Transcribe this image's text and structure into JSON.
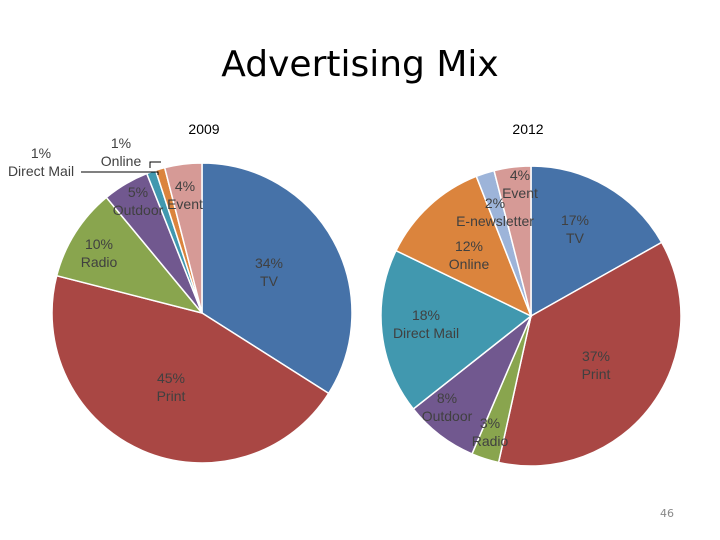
{
  "slide": {
    "title": "Advertising Mix",
    "page_number": "46"
  },
  "chart_data": [
    {
      "type": "pie",
      "title": "2009",
      "slices": [
        {
          "name": "TV",
          "value": 34,
          "label": "34%",
          "color": "#4672a8"
        },
        {
          "name": "Print",
          "value": 45,
          "label": "45%",
          "color": "#a94744"
        },
        {
          "name": "Radio",
          "value": 10,
          "label": "10%",
          "color": "#89a54e"
        },
        {
          "name": "Outdoor",
          "value": 5,
          "label": "5%",
          "color": "#71588f"
        },
        {
          "name": "Direct Mail",
          "value": 1,
          "label": "1%",
          "color": "#4198af"
        },
        {
          "name": "Online",
          "value": 1,
          "label": "1%",
          "color": "#db843d"
        },
        {
          "name": "Event",
          "value": 4,
          "label": "4%",
          "color": "#d69a96"
        }
      ]
    },
    {
      "type": "pie",
      "title": "2012",
      "slices": [
        {
          "name": "TV",
          "value": 17,
          "label": "17%",
          "color": "#4672a8"
        },
        {
          "name": "Print",
          "value": 37,
          "label": "37%",
          "color": "#a94744"
        },
        {
          "name": "Radio",
          "value": 3,
          "label": "3%",
          "color": "#89a54e"
        },
        {
          "name": "Outdoor",
          "value": 8,
          "label": "8%",
          "color": "#71588f"
        },
        {
          "name": "Direct Mail",
          "value": 18,
          "label": "18%",
          "color": "#4198af"
        },
        {
          "name": "Online",
          "value": 12,
          "label": "12%",
          "color": "#db843d"
        },
        {
          "name": "E-newsletter",
          "value": 2,
          "label": "2%",
          "color": "#9db4d9"
        },
        {
          "name": "Event",
          "value": 4,
          "label": "4%",
          "color": "#d69a96"
        }
      ]
    }
  ]
}
